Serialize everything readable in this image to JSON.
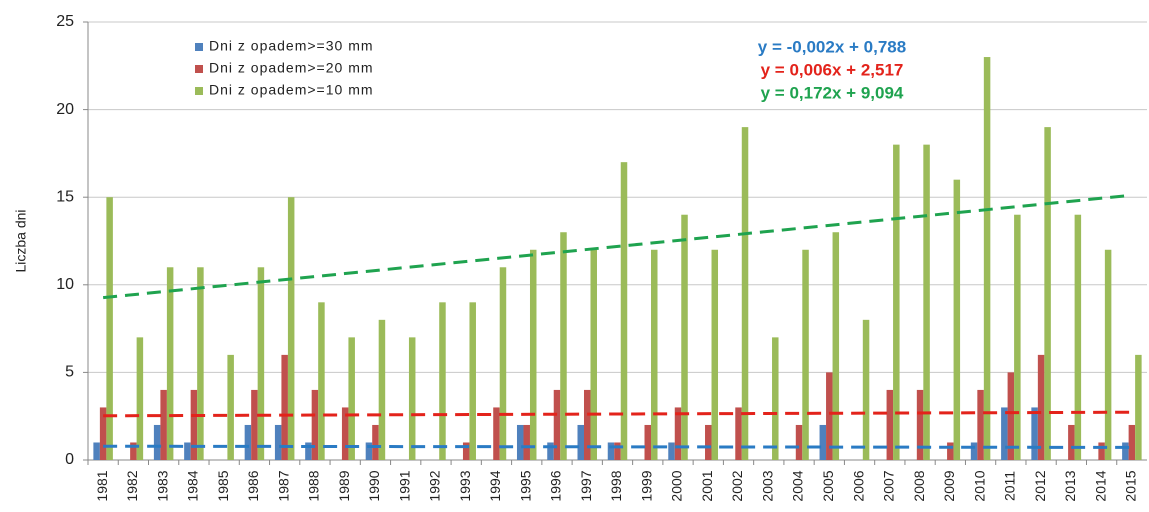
{
  "chart_data": {
    "type": "bar",
    "y_label": "Liczba dni",
    "categories": [
      "1981",
      "1982",
      "1983",
      "1984",
      "1985",
      "1986",
      "1987",
      "1988",
      "1989",
      "1990",
      "1991",
      "1992",
      "1993",
      "1994",
      "1995",
      "1996",
      "1997",
      "1998",
      "1999",
      "2000",
      "2001",
      "2002",
      "2003",
      "2004",
      "2005",
      "2006",
      "2007",
      "2008",
      "2009",
      "2010",
      "2011",
      "2012",
      "2013",
      "2014",
      "2015"
    ],
    "series": [
      {
        "name": "Dni z opadem>=30 mm",
        "color": "#4f81bd",
        "values": [
          1,
          0,
          2,
          1,
          0,
          2,
          2,
          1,
          0,
          1,
          0,
          0,
          0,
          0,
          2,
          1,
          2,
          1,
          0,
          1,
          0,
          0,
          0,
          0,
          2,
          0,
          0,
          0,
          0,
          1,
          3,
          3,
          0,
          0,
          1
        ]
      },
      {
        "name": "Dni z opadem>=20 mm",
        "color": "#c0504d",
        "values": [
          3,
          1,
          4,
          4,
          0,
          4,
          6,
          4,
          3,
          2,
          0,
          0,
          1,
          3,
          2,
          4,
          4,
          1,
          2,
          3,
          2,
          3,
          0,
          2,
          5,
          0,
          4,
          4,
          1,
          4,
          5,
          6,
          2,
          1,
          2
        ]
      },
      {
        "name": "Dni z opadem>=10 mm",
        "color": "#9bbb59",
        "values": [
          15,
          7,
          11,
          11,
          6,
          11,
          15,
          9,
          7,
          8,
          7,
          9,
          9,
          11,
          12,
          13,
          12,
          17,
          12,
          14,
          12,
          19,
          7,
          12,
          13,
          8,
          18,
          18,
          16,
          23,
          14,
          19,
          14,
          12,
          6
        ]
      }
    ],
    "trendlines": [
      {
        "label": "y = -0,002x + 0,788",
        "slope": -0.002,
        "intercept": 0.788,
        "color": "#2a7bc4"
      },
      {
        "label": "y = 0,006x + 2,517",
        "slope": 0.006,
        "intercept": 2.517,
        "color": "#e3231b"
      },
      {
        "label": "y = 0,172x + 9,094",
        "slope": 0.172,
        "intercept": 9.094,
        "color": "#1fa34f"
      }
    ],
    "ylim": [
      0,
      25
    ],
    "yticks": [
      0,
      5,
      10,
      15,
      20,
      25
    ],
    "grid": true,
    "legend": "upper left"
  }
}
